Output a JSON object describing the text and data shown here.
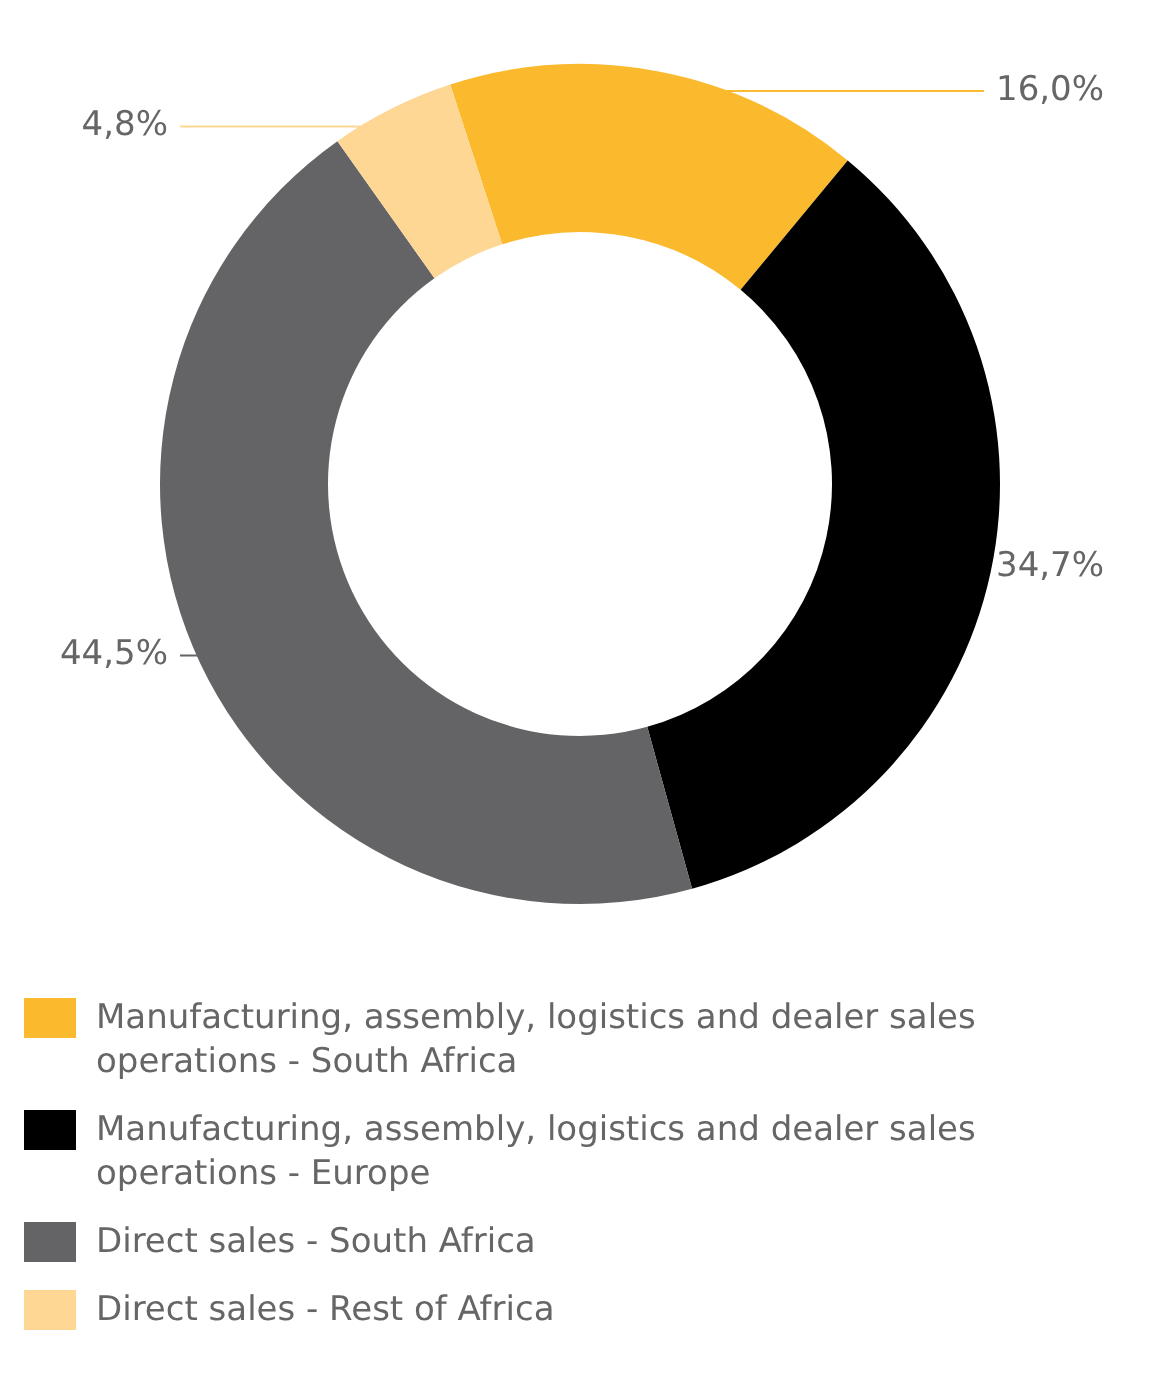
{
  "chart_data": {
    "type": "donut",
    "categories": [
      "Manufacturing, assembly, logistics and dealer sales operations - South Africa",
      "Manufacturing, assembly, logistics and dealer sales operations - Europe",
      "Direct sales - South Africa",
      "Direct sales - Rest of Africa"
    ],
    "values": [
      16.0,
      34.7,
      44.5,
      4.8
    ],
    "value_labels": [
      "16,0%",
      "34,7%",
      "44,5%",
      "4,8%"
    ],
    "colors": [
      "#fbb92e",
      "#000000",
      "#646466",
      "#fdd793"
    ],
    "legend": "bottom"
  }
}
